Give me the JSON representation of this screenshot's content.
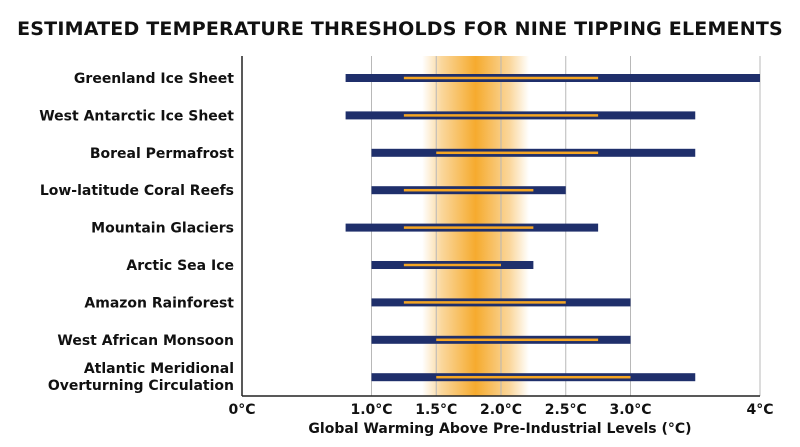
{
  "chart_data": {
    "type": "bar",
    "orientation": "horizontal-range",
    "title": "ESTIMATED TEMPERATURE THRESHOLDS FOR NINE TIPPING ELEMENTS",
    "xlabel": "Global Warming Above Pre-Industrial Levels (°C)",
    "ylabel": "",
    "xlim": [
      0,
      4
    ],
    "x_ticks": [
      {
        "value": 0,
        "label": "0°C"
      },
      {
        "value": 1.0,
        "label": "1.0°C"
      },
      {
        "value": 1.5,
        "label": "1.5°C"
      },
      {
        "value": 2.0,
        "label": "2.0°C"
      },
      {
        "value": 2.5,
        "label": "2.5°C"
      },
      {
        "value": 3.0,
        "label": "3.0°C"
      },
      {
        "value": 4.0,
        "label": "4°C"
      }
    ],
    "grid": true,
    "highlight_band": {
      "from": 1.5,
      "to": 2.0,
      "color": "#f5a623"
    },
    "colors": {
      "range_bar": "#1f2f6b",
      "central_range": "#f5a623",
      "grid": "#b8b8b8",
      "axis": "#222222"
    },
    "categories": [
      {
        "label": [
          "Greenland Ice Sheet"
        ],
        "min": 0.8,
        "max": 4.0,
        "central_min": 1.25,
        "central_max": 2.75
      },
      {
        "label": [
          "West Antarctic Ice Sheet"
        ],
        "min": 0.8,
        "max": 3.5,
        "central_min": 1.25,
        "central_max": 2.75
      },
      {
        "label": [
          "Boreal Permafrost"
        ],
        "min": 1.0,
        "max": 3.5,
        "central_min": 1.5,
        "central_max": 2.75
      },
      {
        "label": [
          "Low-latitude Coral Reefs"
        ],
        "min": 1.0,
        "max": 2.5,
        "central_min": 1.25,
        "central_max": 2.25
      },
      {
        "label": [
          "Mountain Glaciers"
        ],
        "min": 0.8,
        "max": 2.75,
        "central_min": 1.25,
        "central_max": 2.25
      },
      {
        "label": [
          "Arctic Sea Ice"
        ],
        "min": 1.0,
        "max": 2.25,
        "central_min": 1.25,
        "central_max": 2.0
      },
      {
        "label": [
          "Amazon Rainforest"
        ],
        "min": 1.0,
        "max": 3.0,
        "central_min": 1.25,
        "central_max": 2.5
      },
      {
        "label": [
          "West African Monsoon"
        ],
        "min": 1.0,
        "max": 3.0,
        "central_min": 1.5,
        "central_max": 2.75
      },
      {
        "label": [
          "Atlantic Meridional",
          "Overturning Circulation"
        ],
        "min": 1.0,
        "max": 3.5,
        "central_min": 1.5,
        "central_max": 3.0
      }
    ]
  }
}
